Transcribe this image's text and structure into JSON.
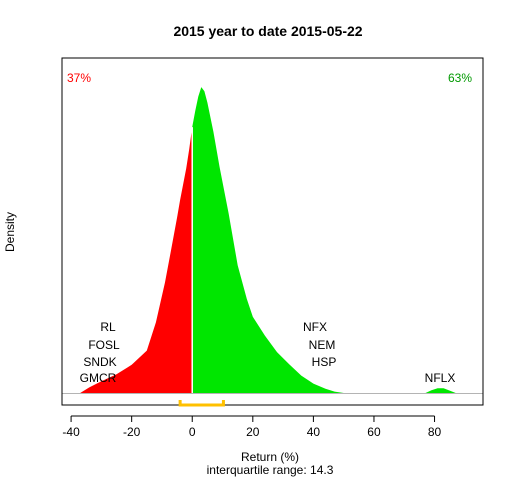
{
  "chart_data": {
    "type": "area",
    "title": "2015  year to date 2015-05-22",
    "xlabel": "Return (%)",
    "ylabel": "Density",
    "subtitle": "interquartile range: 14.3",
    "xlim": [
      -43,
      96
    ],
    "xticks": [
      "-40",
      "-20",
      "0",
      "20",
      "40",
      "60",
      "80"
    ],
    "split_at": 0,
    "negative_share_label": "37%",
    "positive_share_label": "63%",
    "colors": {
      "negative": "#ff0000",
      "positive": "#00e600",
      "iqr": "#ffc000",
      "divider": "#ffffff",
      "frame": "#b4b4b4"
    },
    "density_curve": {
      "x": [
        -37,
        -34,
        -30,
        -25,
        -20,
        -15,
        -12,
        -9,
        -7,
        -5,
        -4,
        -3,
        -2,
        -1,
        0,
        1,
        2,
        3,
        4,
        5,
        7,
        9,
        12,
        15,
        18,
        20,
        24,
        28,
        32,
        36,
        40,
        44,
        47,
        50
      ],
      "y": [
        0.0,
        0.0012,
        0.0025,
        0.004,
        0.006,
        0.009,
        0.015,
        0.0235,
        0.0303,
        0.0373,
        0.041,
        0.0444,
        0.0477,
        0.0518,
        0.0565,
        0.06,
        0.063,
        0.065,
        0.0641,
        0.0617,
        0.0555,
        0.0481,
        0.0382,
        0.0271,
        0.02,
        0.0162,
        0.0122,
        0.0087,
        0.0061,
        0.0037,
        0.002,
        0.0009,
        0.0003,
        0.0
      ]
    },
    "outlier_bump": {
      "x": [
        77,
        79,
        81,
        83,
        85,
        87
      ],
      "y": [
        0,
        0.0006,
        0.001,
        0.001,
        0.0005,
        0
      ]
    },
    "ylim": [
      0,
      0.0682
    ],
    "iqr": [
      -4,
      10.3
    ],
    "left_labels": [
      "RL",
      "FOSL",
      "SNDK",
      "GMCR"
    ],
    "right_labels": [
      "NFX",
      "NEM",
      "HSP"
    ],
    "outlier_label": "NFLX"
  }
}
